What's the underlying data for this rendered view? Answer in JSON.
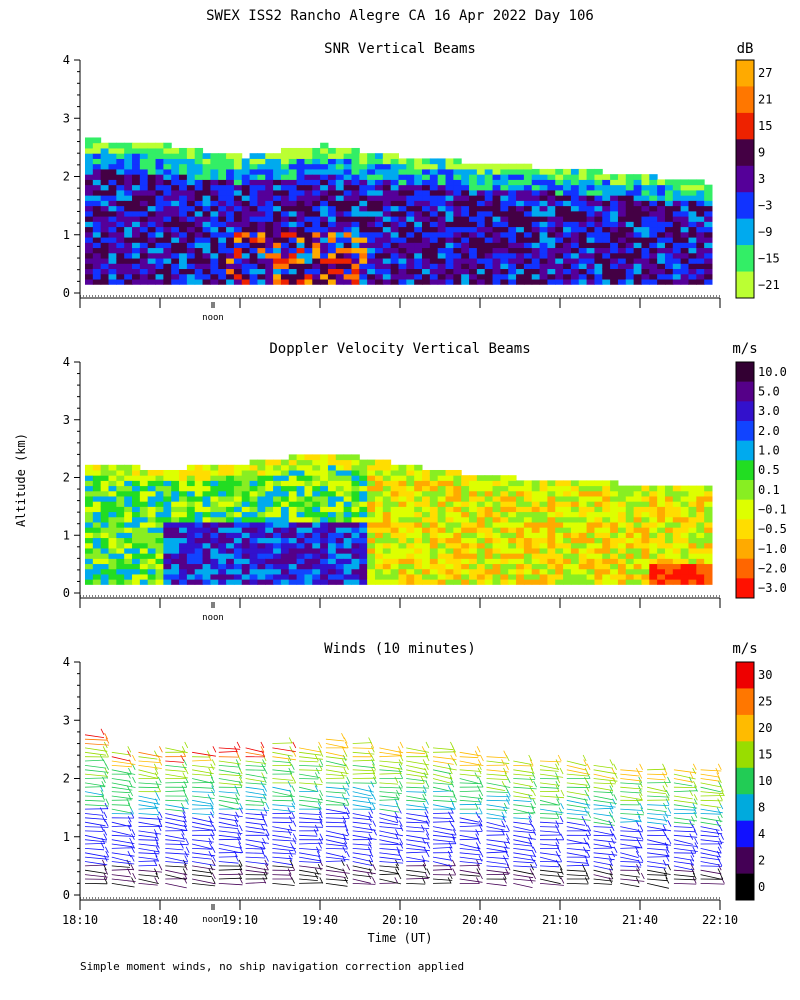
{
  "header": {
    "title": "SWEX ISS2 Rancho Alegre CA  16 Apr 2022 Day 106"
  },
  "footer": {
    "note": "Simple moment winds, no ship navigation correction applied"
  },
  "axes": {
    "ylabel": "Altitude (km)",
    "xlabel": "Time (UT)",
    "noon_label": "noon",
    "time_ticks": [
      "18:10",
      "18:40",
      "19:10",
      "19:40",
      "20:10",
      "20:40",
      "21:10",
      "21:40",
      "22:10"
    ],
    "alt_ticks": [
      "0",
      "1",
      "2",
      "3",
      "4"
    ]
  },
  "chart_data": [
    {
      "type": "heatmap",
      "title": "SNR Vertical Beams",
      "colorbar_unit": "dB",
      "colorbar_labels": [
        "27",
        "21",
        "15",
        "9",
        "3",
        "−3",
        "−9",
        "−15",
        "−21"
      ],
      "colors": [
        "#ffaa00",
        "#ff7700",
        "#ee2200",
        "#440044",
        "#550099",
        "#1133ff",
        "#00aaee",
        "#33ee66",
        "#bbff33"
      ],
      "ylabel": "Altitude (km)",
      "ylim": [
        0,
        4
      ],
      "x_range": [
        "18:10",
        "22:10"
      ],
      "top_of_data_km": [
        2.6,
        2.5,
        2.3,
        2.5,
        2.3,
        2.2,
        2.1,
        2.0,
        1.85
      ],
      "description_values_db": "mostly -3 to 9 dB, peaks 21-27 dB near 19:10-19:40 below 1 km"
    },
    {
      "type": "heatmap",
      "title": "Doppler Velocity Vertical Beams",
      "colorbar_unit": "m/s",
      "colorbar_labels": [
        "10.0",
        "5.0",
        "3.0",
        "2.0",
        "1.0",
        "0.5",
        "0.1",
        "−0.1",
        "−0.5",
        "−1.0",
        "−2.0",
        "−3.0"
      ],
      "colors": [
        "#330033",
        "#550088",
        "#3311cc",
        "#1144ff",
        "#00aaee",
        "#22dd22",
        "#88ee22",
        "#ddff00",
        "#ffdd00",
        "#ffaa00",
        "#ff6600",
        "#ff1100"
      ],
      "ylabel": "Altitude (km)",
      "ylim": [
        0,
        4
      ],
      "x_range": [
        "18:10",
        "22:10"
      ],
      "top_of_data_km": [
        2.2,
        2.1,
        2.2,
        2.4,
        2.2,
        2.0,
        1.9,
        1.85,
        1.8
      ]
    },
    {
      "type": "scatter",
      "title": "Winds (10 minutes)",
      "colorbar_unit": "m/s",
      "colorbar_labels": [
        "30",
        "25",
        "20",
        "15",
        "10",
        "8",
        "4",
        "2",
        "0"
      ],
      "colors": [
        "#ee0000",
        "#ff7700",
        "#ffbb00",
        "#99dd00",
        "#22cc55",
        "#00aadd",
        "#1111ff",
        "#440055",
        "#000000"
      ],
      "ylabel": "Altitude (km)",
      "ylim": [
        0,
        4
      ],
      "xlabel": "Time (UT)",
      "profile_times": [
        "18:10",
        "18:20",
        "18:30",
        "18:40",
        "18:50",
        "19:00",
        "19:10",
        "19:20",
        "19:30",
        "19:40",
        "19:50",
        "20:00",
        "20:10",
        "20:20",
        "20:30",
        "20:40",
        "20:50",
        "21:00",
        "21:10",
        "21:20",
        "21:30",
        "21:40",
        "21:50",
        "22:00"
      ],
      "profile_top_km": [
        2.8,
        2.5,
        2.45,
        2.55,
        2.5,
        2.6,
        2.6,
        2.65,
        2.6,
        2.75,
        2.65,
        2.6,
        2.55,
        2.55,
        2.5,
        2.4,
        2.35,
        2.3,
        2.3,
        2.25,
        2.2,
        2.2,
        2.2,
        2.15
      ]
    }
  ]
}
